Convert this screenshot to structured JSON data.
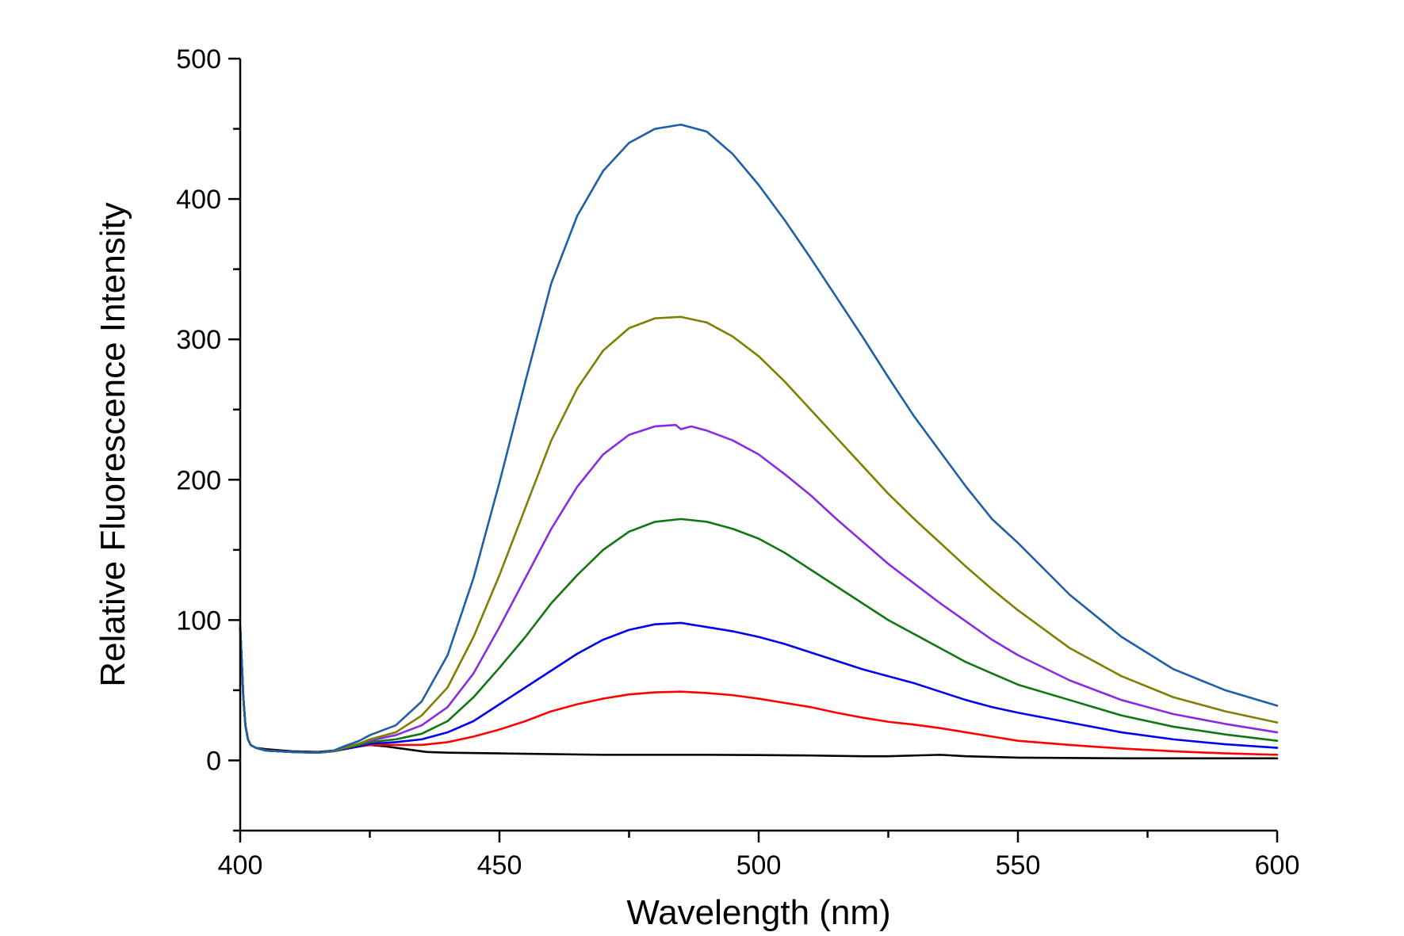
{
  "chart_data": {
    "type": "line",
    "title": "",
    "xlabel": "Wavelength (nm)",
    "ylabel": "Relative Fluorescence Intensity",
    "xlim": [
      400,
      600
    ],
    "ylim": [
      -50,
      500
    ],
    "x_ticks": [
      400,
      450,
      500,
      550,
      600
    ],
    "x_minor_ticks": [
      425,
      475,
      525,
      575
    ],
    "y_ticks": [
      0,
      100,
      200,
      300,
      400,
      500
    ],
    "y_minor_ticks": [
      -50,
      50,
      150,
      250,
      350,
      450
    ],
    "grid": false,
    "legend": "none",
    "series": [
      {
        "color": "#000000",
        "points": [
          [
            400,
            95
          ],
          [
            400.6,
            45
          ],
          [
            401,
            25
          ],
          [
            401.5,
            15
          ],
          [
            402,
            11
          ],
          [
            403,
            9
          ],
          [
            405,
            8
          ],
          [
            410,
            6.5
          ],
          [
            415,
            6
          ],
          [
            418,
            7
          ],
          [
            420,
            8
          ],
          [
            423,
            10
          ],
          [
            425,
            11
          ],
          [
            428,
            10
          ],
          [
            430,
            9
          ],
          [
            433,
            7.5
          ],
          [
            436,
            6
          ],
          [
            440,
            5.5
          ],
          [
            450,
            5
          ],
          [
            470,
            4
          ],
          [
            480,
            4
          ],
          [
            490,
            4
          ],
          [
            500,
            3.8
          ],
          [
            510,
            3.5
          ],
          [
            520,
            3
          ],
          [
            525,
            3
          ],
          [
            530,
            3.5
          ],
          [
            535,
            4
          ],
          [
            540,
            3
          ],
          [
            550,
            2
          ],
          [
            570,
            1.5
          ],
          [
            600,
            1.5
          ]
        ]
      },
      {
        "color": "#ff0000",
        "points": [
          [
            400,
            95
          ],
          [
            400.6,
            45
          ],
          [
            401,
            25
          ],
          [
            401.5,
            15
          ],
          [
            402,
            11
          ],
          [
            403,
            9
          ],
          [
            405,
            7
          ],
          [
            410,
            6
          ],
          [
            415,
            5.5
          ],
          [
            418,
            6.5
          ],
          [
            420,
            8
          ],
          [
            423,
            10
          ],
          [
            425,
            11
          ],
          [
            428,
            11
          ],
          [
            430,
            11
          ],
          [
            435,
            11
          ],
          [
            440,
            13
          ],
          [
            445,
            17
          ],
          [
            450,
            22
          ],
          [
            455,
            28
          ],
          [
            460,
            35
          ],
          [
            465,
            40
          ],
          [
            470,
            44
          ],
          [
            475,
            47
          ],
          [
            480,
            48.5
          ],
          [
            485,
            49
          ],
          [
            490,
            48
          ],
          [
            495,
            46.5
          ],
          [
            500,
            44
          ],
          [
            505,
            41
          ],
          [
            510,
            38
          ],
          [
            515,
            34
          ],
          [
            520,
            30.5
          ],
          [
            525,
            27.5
          ],
          [
            530,
            25.5
          ],
          [
            535,
            23
          ],
          [
            540,
            20
          ],
          [
            545,
            17
          ],
          [
            550,
            14
          ],
          [
            560,
            11
          ],
          [
            570,
            8.5
          ],
          [
            580,
            6.5
          ],
          [
            590,
            5
          ],
          [
            600,
            4
          ]
        ]
      },
      {
        "color": "#0000ee",
        "points": [
          [
            400,
            95
          ],
          [
            400.6,
            45
          ],
          [
            401,
            25
          ],
          [
            401.5,
            15
          ],
          [
            402,
            11
          ],
          [
            403,
            9
          ],
          [
            405,
            7
          ],
          [
            410,
            6
          ],
          [
            415,
            5.5
          ],
          [
            418,
            6.5
          ],
          [
            420,
            8
          ],
          [
            423,
            10
          ],
          [
            425,
            12
          ],
          [
            428,
            12.5
          ],
          [
            430,
            13
          ],
          [
            435,
            15
          ],
          [
            440,
            20
          ],
          [
            445,
            28
          ],
          [
            450,
            40
          ],
          [
            455,
            52
          ],
          [
            460,
            64
          ],
          [
            465,
            76
          ],
          [
            470,
            86
          ],
          [
            475,
            93
          ],
          [
            480,
            97
          ],
          [
            485,
            98
          ],
          [
            490,
            95
          ],
          [
            495,
            92
          ],
          [
            500,
            88
          ],
          [
            505,
            83
          ],
          [
            510,
            77
          ],
          [
            515,
            71
          ],
          [
            520,
            65
          ],
          [
            525,
            60
          ],
          [
            530,
            55
          ],
          [
            535,
            49
          ],
          [
            540,
            43
          ],
          [
            545,
            38
          ],
          [
            550,
            34
          ],
          [
            560,
            27
          ],
          [
            570,
            20
          ],
          [
            580,
            15
          ],
          [
            590,
            11.5
          ],
          [
            600,
            9
          ]
        ]
      },
      {
        "color": "#117711",
        "points": [
          [
            400,
            95
          ],
          [
            400.6,
            45
          ],
          [
            401,
            25
          ],
          [
            401.5,
            15
          ],
          [
            402,
            11
          ],
          [
            403,
            9
          ],
          [
            405,
            7
          ],
          [
            410,
            6
          ],
          [
            415,
            5.5
          ],
          [
            418,
            6.5
          ],
          [
            420,
            8.5
          ],
          [
            423,
            11
          ],
          [
            425,
            13
          ],
          [
            430,
            15
          ],
          [
            435,
            19
          ],
          [
            440,
            28
          ],
          [
            445,
            45
          ],
          [
            450,
            66
          ],
          [
            455,
            88
          ],
          [
            460,
            112
          ],
          [
            465,
            132
          ],
          [
            470,
            150
          ],
          [
            475,
            163
          ],
          [
            480,
            170
          ],
          [
            485,
            172
          ],
          [
            490,
            170
          ],
          [
            495,
            165
          ],
          [
            500,
            158
          ],
          [
            505,
            148
          ],
          [
            510,
            136
          ],
          [
            515,
            124
          ],
          [
            520,
            112
          ],
          [
            525,
            100
          ],
          [
            530,
            90
          ],
          [
            535,
            80
          ],
          [
            540,
            70
          ],
          [
            545,
            62
          ],
          [
            550,
            54
          ],
          [
            560,
            43
          ],
          [
            570,
            32
          ],
          [
            580,
            24
          ],
          [
            590,
            18.5
          ],
          [
            600,
            14
          ]
        ]
      },
      {
        "color": "#8a2be2",
        "points": [
          [
            400,
            95
          ],
          [
            400.6,
            45
          ],
          [
            401,
            25
          ],
          [
            401.5,
            15
          ],
          [
            402,
            11
          ],
          [
            403,
            9
          ],
          [
            405,
            7
          ],
          [
            410,
            6
          ],
          [
            415,
            5.5
          ],
          [
            418,
            6.5
          ],
          [
            420,
            9
          ],
          [
            423,
            12
          ],
          [
            425,
            14
          ],
          [
            430,
            18
          ],
          [
            435,
            25
          ],
          [
            440,
            38
          ],
          [
            445,
            62
          ],
          [
            450,
            95
          ],
          [
            455,
            130
          ],
          [
            460,
            165
          ],
          [
            465,
            195
          ],
          [
            470,
            218
          ],
          [
            475,
            232
          ],
          [
            480,
            238
          ],
          [
            484,
            239
          ],
          [
            485,
            236
          ],
          [
            487,
            238
          ],
          [
            490,
            235
          ],
          [
            495,
            228
          ],
          [
            500,
            218
          ],
          [
            505,
            204
          ],
          [
            510,
            189
          ],
          [
            515,
            172
          ],
          [
            520,
            156
          ],
          [
            525,
            140
          ],
          [
            530,
            126
          ],
          [
            535,
            112
          ],
          [
            540,
            99
          ],
          [
            545,
            86
          ],
          [
            550,
            75
          ],
          [
            560,
            57
          ],
          [
            570,
            43
          ],
          [
            580,
            33
          ],
          [
            590,
            26
          ],
          [
            600,
            20
          ]
        ]
      },
      {
        "color": "#7f7f00",
        "points": [
          [
            400,
            95
          ],
          [
            400.6,
            45
          ],
          [
            401,
            25
          ],
          [
            401.5,
            15
          ],
          [
            402,
            11
          ],
          [
            403,
            9
          ],
          [
            405,
            7
          ],
          [
            410,
            6
          ],
          [
            415,
            5.5
          ],
          [
            418,
            6.5
          ],
          [
            420,
            9
          ],
          [
            423,
            12
          ],
          [
            425,
            15
          ],
          [
            430,
            20
          ],
          [
            435,
            32
          ],
          [
            440,
            52
          ],
          [
            445,
            88
          ],
          [
            450,
            132
          ],
          [
            455,
            180
          ],
          [
            460,
            228
          ],
          [
            465,
            265
          ],
          [
            470,
            292
          ],
          [
            475,
            308
          ],
          [
            480,
            315
          ],
          [
            485,
            316
          ],
          [
            490,
            312
          ],
          [
            495,
            302
          ],
          [
            500,
            288
          ],
          [
            505,
            270
          ],
          [
            510,
            250
          ],
          [
            515,
            230
          ],
          [
            520,
            210
          ],
          [
            525,
            190
          ],
          [
            530,
            172
          ],
          [
            535,
            155
          ],
          [
            540,
            138
          ],
          [
            545,
            122
          ],
          [
            550,
            107
          ],
          [
            560,
            80
          ],
          [
            570,
            60
          ],
          [
            580,
            45
          ],
          [
            590,
            35
          ],
          [
            600,
            27
          ]
        ]
      },
      {
        "color": "#1f5fa5",
        "points": [
          [
            400,
            95
          ],
          [
            400.6,
            45
          ],
          [
            401,
            25
          ],
          [
            401.5,
            15
          ],
          [
            402,
            11
          ],
          [
            403,
            9
          ],
          [
            405,
            7
          ],
          [
            410,
            6
          ],
          [
            415,
            5.5
          ],
          [
            418,
            7
          ],
          [
            420,
            10
          ],
          [
            423,
            14
          ],
          [
            425,
            18
          ],
          [
            430,
            25
          ],
          [
            435,
            42
          ],
          [
            440,
            75
          ],
          [
            445,
            130
          ],
          [
            450,
            198
          ],
          [
            455,
            270
          ],
          [
            460,
            340
          ],
          [
            465,
            388
          ],
          [
            470,
            420
          ],
          [
            475,
            440
          ],
          [
            480,
            450
          ],
          [
            485,
            453
          ],
          [
            490,
            448
          ],
          [
            495,
            432
          ],
          [
            500,
            410
          ],
          [
            505,
            385
          ],
          [
            510,
            358
          ],
          [
            515,
            330
          ],
          [
            520,
            302
          ],
          [
            525,
            273
          ],
          [
            530,
            245
          ],
          [
            535,
            220
          ],
          [
            540,
            195
          ],
          [
            545,
            172
          ],
          [
            550,
            155
          ],
          [
            560,
            118
          ],
          [
            570,
            88
          ],
          [
            580,
            65
          ],
          [
            590,
            50
          ],
          [
            600,
            39
          ]
        ]
      }
    ]
  }
}
